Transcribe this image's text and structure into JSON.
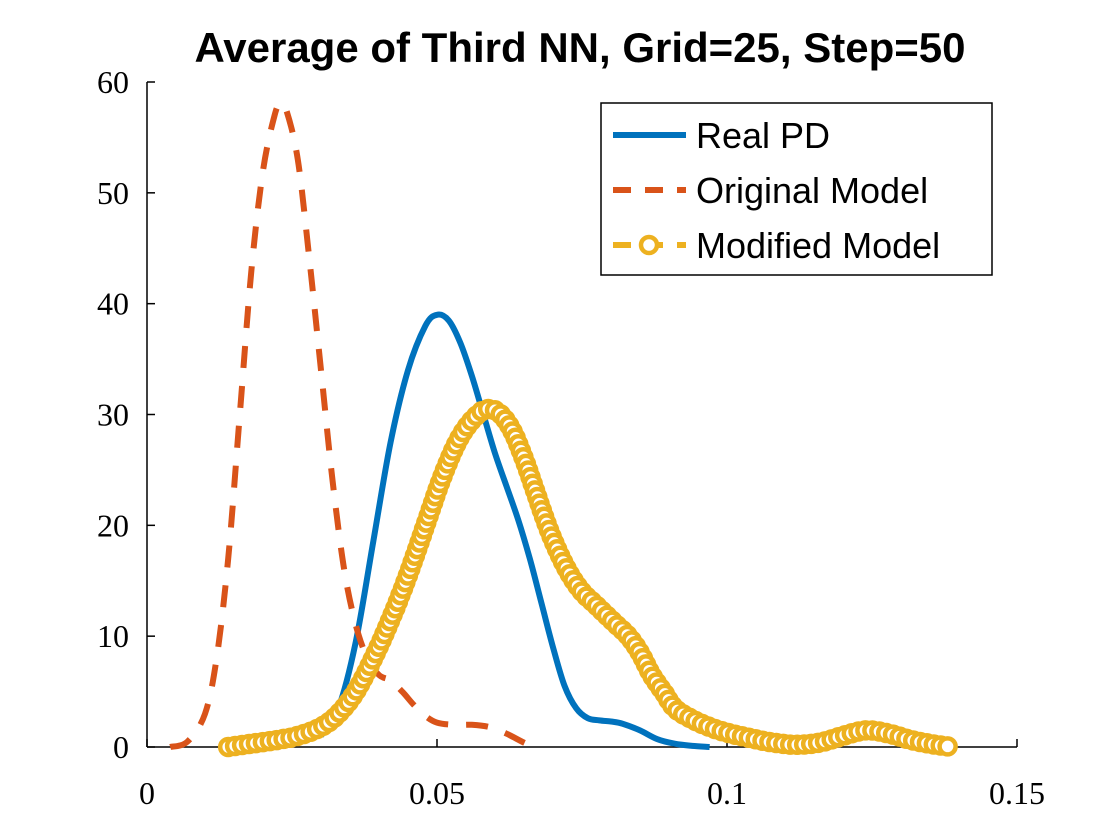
{
  "chart_data": {
    "type": "line",
    "title": "Average of Third NN, Grid=25, Step=50",
    "xlabel": "",
    "ylabel": "",
    "xlim": [
      0,
      0.15
    ],
    "ylim": [
      0,
      60
    ],
    "x_ticks": [
      0,
      0.05,
      0.1,
      0.15
    ],
    "x_tick_labels": [
      "0",
      "0.05",
      "0.1",
      "0.15"
    ],
    "y_ticks": [
      0,
      10,
      20,
      30,
      40,
      50,
      60
    ],
    "y_tick_labels": [
      "0",
      "10",
      "20",
      "30",
      "40",
      "50",
      "60"
    ],
    "grid": false,
    "legend_position": "top-right",
    "series": [
      {
        "name": "Real PD",
        "color": "#0072BD",
        "style": "solid",
        "x": [
          0.03,
          0.033,
          0.036,
          0.039,
          0.042,
          0.045,
          0.048,
          0.05,
          0.052,
          0.054,
          0.056,
          0.058,
          0.06,
          0.062,
          0.064,
          0.066,
          0.068,
          0.07,
          0.072,
          0.074,
          0.076,
          0.078,
          0.08,
          0.082,
          0.085,
          0.088,
          0.091,
          0.094,
          0.097
        ],
        "y": [
          1.0,
          3.5,
          9.5,
          18.5,
          27.5,
          34.0,
          38.0,
          39.0,
          38.5,
          36.5,
          33.5,
          30.0,
          26.5,
          23.5,
          20.5,
          17.0,
          13.0,
          9.0,
          5.5,
          3.5,
          2.6,
          2.4,
          2.3,
          2.1,
          1.5,
          0.7,
          0.3,
          0.1,
          0.0
        ]
      },
      {
        "name": "Original Model",
        "color": "#D95319",
        "style": "dashed",
        "x": [
          0.004,
          0.007,
          0.01,
          0.012,
          0.014,
          0.016,
          0.018,
          0.02,
          0.022,
          0.023,
          0.024,
          0.026,
          0.028,
          0.03,
          0.032,
          0.034,
          0.036,
          0.038,
          0.04,
          0.042,
          0.044,
          0.046,
          0.048,
          0.05,
          0.053,
          0.056,
          0.059,
          0.062,
          0.065,
          0.067
        ],
        "y": [
          0.0,
          0.5,
          3.0,
          8.0,
          17.0,
          30.0,
          43.0,
          52.0,
          57.0,
          58.0,
          57.5,
          53.0,
          44.0,
          34.0,
          24.0,
          16.0,
          11.0,
          8.0,
          6.5,
          6.0,
          5.0,
          3.8,
          2.8,
          2.2,
          2.0,
          2.0,
          1.8,
          1.2,
          0.4,
          0.0
        ]
      },
      {
        "name": "Modified Model",
        "color": "#EDB120",
        "style": "dashed-circles",
        "x": [
          0.014,
          0.018,
          0.022,
          0.026,
          0.03,
          0.033,
          0.036,
          0.039,
          0.042,
          0.045,
          0.048,
          0.051,
          0.054,
          0.057,
          0.059,
          0.061,
          0.063,
          0.065,
          0.067,
          0.069,
          0.071,
          0.073,
          0.075,
          0.077,
          0.079,
          0.081,
          0.083,
          0.085,
          0.087,
          0.089,
          0.091,
          0.094,
          0.097,
          0.1,
          0.104,
          0.108,
          0.112,
          0.116,
          0.12,
          0.124,
          0.128,
          0.132,
          0.136,
          0.139
        ],
        "y": [
          0.0,
          0.3,
          0.6,
          1.0,
          1.8,
          3.0,
          5.0,
          8.0,
          11.5,
          15.5,
          20.0,
          24.5,
          28.0,
          30.0,
          30.5,
          30.0,
          28.5,
          26.0,
          23.0,
          20.0,
          17.5,
          15.5,
          14.0,
          13.0,
          12.0,
          11.0,
          10.0,
          8.5,
          6.5,
          5.0,
          3.5,
          2.5,
          1.8,
          1.3,
          0.8,
          0.4,
          0.2,
          0.4,
          1.0,
          1.5,
          1.2,
          0.6,
          0.2,
          0.0
        ]
      }
    ]
  }
}
